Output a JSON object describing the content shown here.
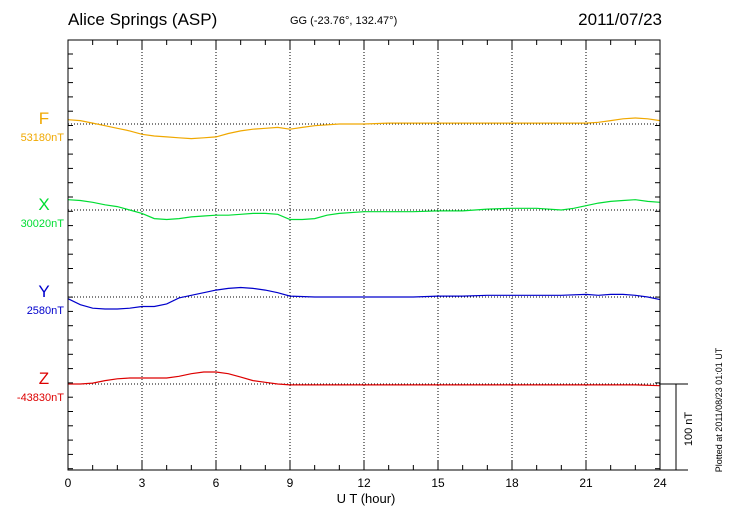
{
  "header": {
    "title": "Alice Springs (ASP)",
    "subtitle": "GG (-23.76°, 132.47°)",
    "date": "2011/07/23"
  },
  "footnote": "Plotted at 2011/08/23 01:01  UT",
  "chart_data": {
    "type": "line",
    "xlabel": "U T (hour)",
    "xlim": [
      0,
      24
    ],
    "xticks": [
      0,
      3,
      6,
      9,
      12,
      15,
      18,
      21,
      24
    ],
    "grid": true,
    "scale_bar": {
      "label": "100 nT",
      "value_nT": 100
    },
    "series": [
      {
        "name": "F",
        "baseline_label": "53180nT",
        "baseline_nT": 53180,
        "color": "#f0a800",
        "x": [
          0,
          0.5,
          1,
          1.5,
          2,
          2.5,
          3,
          3.5,
          4,
          4.5,
          5,
          5.5,
          6,
          6.5,
          7,
          7.5,
          8,
          8.5,
          9,
          9.5,
          10,
          11,
          12,
          13,
          14,
          15,
          16,
          17,
          18,
          19,
          20,
          20.5,
          21,
          21.5,
          22,
          22.5,
          23,
          23.5,
          24
        ],
        "y": [
          53185,
          53184,
          53181,
          53178,
          53175,
          53172,
          53168,
          53166,
          53165,
          53164,
          53163,
          53164,
          53165,
          53169,
          53172,
          53174,
          53175,
          53176,
          53174,
          53176,
          53178,
          53180,
          53180,
          53181,
          53181,
          53181,
          53181,
          53181,
          53181,
          53181,
          53181,
          53181,
          53181,
          53182,
          53184,
          53186,
          53187,
          53186,
          53184
        ]
      },
      {
        "name": "X",
        "baseline_label": "30020nT",
        "baseline_nT": 30020,
        "color": "#00dd33",
        "x": [
          0,
          0.5,
          1,
          1.5,
          2,
          2.5,
          3,
          3.5,
          4,
          4.5,
          5,
          5.5,
          6,
          6.5,
          7,
          7.5,
          8,
          8.5,
          9,
          9.5,
          10,
          10.5,
          11,
          12,
          13,
          14,
          15,
          16,
          17,
          18,
          19,
          20,
          20.5,
          21,
          21.5,
          22,
          22.5,
          23,
          23.5,
          24
        ],
        "y": [
          30032,
          30031,
          30029,
          30026,
          30024,
          30020,
          30016,
          30010,
          30009,
          30010,
          30012,
          30013,
          30014,
          30014,
          30015,
          30016,
          30016,
          30015,
          30009,
          30009,
          30010,
          30014,
          30016,
          30018,
          30018,
          30018,
          30019,
          30019,
          30021,
          30022,
          30022,
          30020,
          30022,
          30025,
          30028,
          30030,
          30031,
          30032,
          30030,
          30029
        ]
      },
      {
        "name": "Y",
        "baseline_label": "2580nT",
        "baseline_nT": 2580,
        "color": "#0000cc",
        "x": [
          0,
          0.5,
          1,
          1.5,
          2,
          2.5,
          3,
          3.5,
          4,
          4.5,
          5,
          5.5,
          6,
          6.5,
          7,
          7.5,
          8,
          8.5,
          9,
          10,
          11,
          12,
          13,
          14,
          15,
          16,
          17,
          18,
          19,
          20,
          21,
          21.5,
          22,
          22.5,
          23,
          23.5,
          24
        ],
        "y": [
          2578,
          2571,
          2567,
          2566,
          2566,
          2567,
          2569,
          2569,
          2572,
          2579,
          2582,
          2585,
          2588,
          2590,
          2591,
          2590,
          2588,
          2585,
          2581,
          2580,
          2580,
          2580,
          2580,
          2580,
          2581,
          2581,
          2582,
          2582,
          2582,
          2582,
          2583,
          2582,
          2583,
          2583,
          2582,
          2580,
          2577
        ]
      },
      {
        "name": "Z",
        "baseline_label": "-43830nT",
        "baseline_nT": -43830,
        "color": "#dd0000",
        "x": [
          0,
          0.5,
          1,
          1.5,
          2,
          2.5,
          3,
          3.5,
          4,
          4.5,
          5,
          5.5,
          6,
          6.5,
          7,
          7.5,
          8,
          8.5,
          9,
          10,
          11,
          12,
          13,
          14,
          15,
          16,
          17,
          18,
          19,
          20,
          21,
          22,
          23,
          24
        ],
        "y": [
          -43830,
          -43830,
          -43829,
          -43826,
          -43824,
          -43823,
          -43823,
          -43823,
          -43823,
          -43821,
          -43818,
          -43816,
          -43816,
          -43818,
          -43822,
          -43826,
          -43828,
          -43830,
          -43831,
          -43831,
          -43831,
          -43831,
          -43831,
          -43831,
          -43831,
          -43831,
          -43831,
          -43831,
          -43831,
          -43831,
          -43831,
          -43831,
          -43831,
          -43832
        ]
      }
    ]
  }
}
